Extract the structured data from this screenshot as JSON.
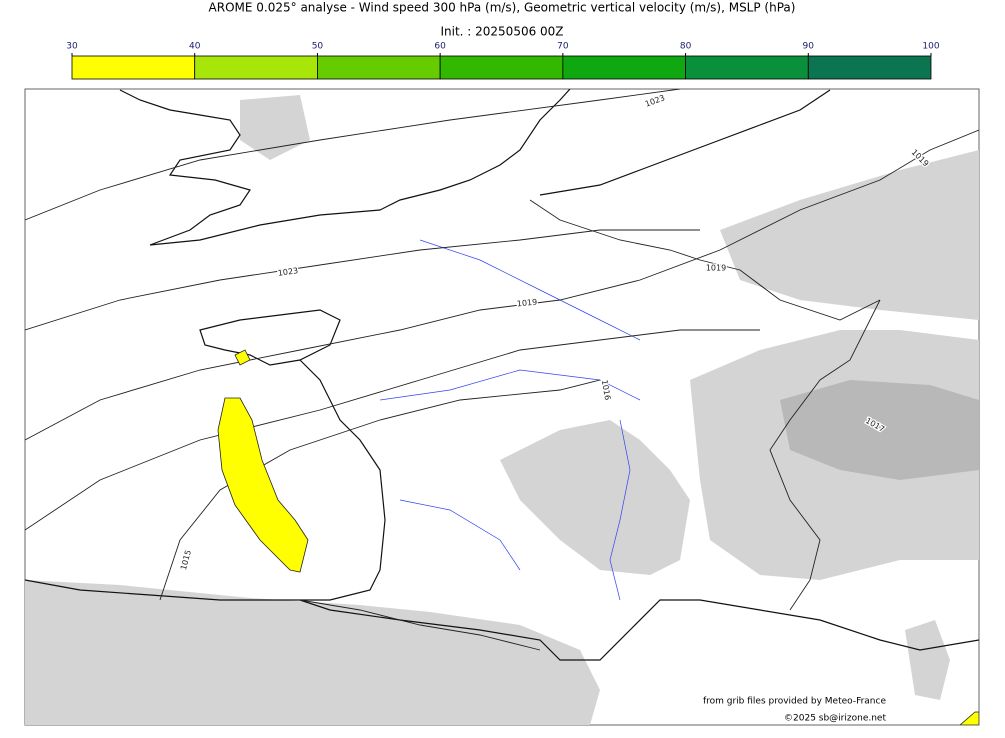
{
  "header": {
    "title": "AROME 0.025° analyse - Wind speed 300 hPa (m/s), Geometric vertical velocity (m/s), MSLP (hPa)",
    "init": "Init. : 20250506 00Z"
  },
  "colorbar": {
    "ticks": [
      30,
      40,
      50,
      60,
      70,
      80,
      90,
      100
    ],
    "colors": [
      "#ffff00",
      "#a8e60a",
      "#66cc00",
      "#33b800",
      "#10a810",
      "#0a8f3a",
      "#0a7550"
    ]
  },
  "map": {
    "isobar_labels": [
      1023,
      1023,
      1019,
      1019,
      1019,
      1016,
      1015,
      1017
    ]
  },
  "credits": {
    "source": "from grib files provided by Meteo-France",
    "copyright": "©2025 sb@irizone.net"
  }
}
